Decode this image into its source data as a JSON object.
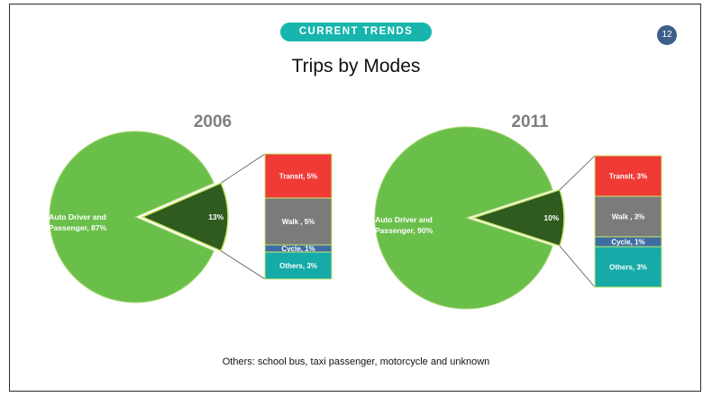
{
  "header": {
    "badge_label": "CURRENT TRENDS",
    "page_number": "12",
    "title": "Trips by Modes"
  },
  "footnote": "Others: school bus, taxi passenger, motorcycle and unknown",
  "colors": {
    "accent": "#17b5ad",
    "page_badge": "#3e5f8a",
    "auto": "#6abf4b",
    "other_modes_slice": "#2f5b1e",
    "transit": "#ef3a36",
    "walk": "#7b7b7b",
    "cycle": "#3f6da2",
    "others": "#16aaa8",
    "year_label": "#7f7f7f"
  },
  "chart_data": [
    {
      "type": "pie",
      "title": "2006",
      "slices": [
        {
          "label": "Auto Driver and Passenger, 87%",
          "value": 87
        },
        {
          "label": "13%",
          "value": 13
        }
      ],
      "breakdown": [
        {
          "label": "Transit, 5%",
          "value": 5,
          "color_key": "transit"
        },
        {
          "label": "Walk , 5%",
          "value": 5,
          "color_key": "walk"
        },
        {
          "label": "Cycle, 1%",
          "value": 1,
          "color_key": "cycle"
        },
        {
          "label": "Others, 3%",
          "value": 3,
          "color_key": "others"
        }
      ]
    },
    {
      "type": "pie",
      "title": "2011",
      "slices": [
        {
          "label": "Auto Driver and Passenger, 90%",
          "value": 90
        },
        {
          "label": "10%",
          "value": 10
        }
      ],
      "breakdown": [
        {
          "label": "Transit, 3%",
          "value": 3,
          "color_key": "transit"
        },
        {
          "label": "Walk , 3%",
          "value": 3,
          "color_key": "walk"
        },
        {
          "label": "Cycle, 1%",
          "value": 1,
          "color_key": "cycle"
        },
        {
          "label": "Others, 3%",
          "value": 3,
          "color_key": "others"
        }
      ]
    }
  ]
}
